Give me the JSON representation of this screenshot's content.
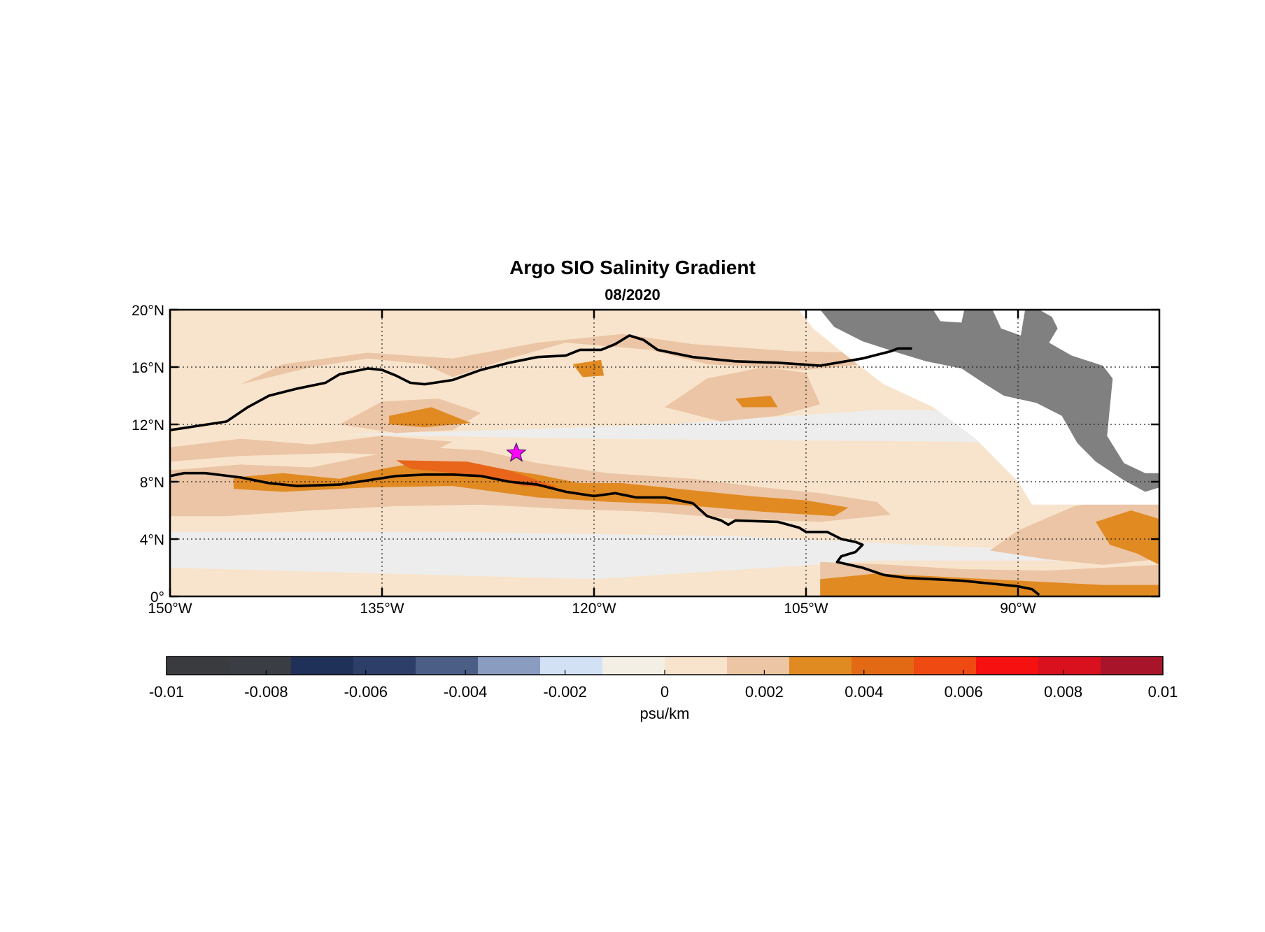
{
  "chart_data": {
    "type": "heatmap",
    "title": "Argo SIO Salinity Gradient",
    "subtitle": "08/2020",
    "x_ticks": [
      "150°W",
      "135°W",
      "120°W",
      "105°W",
      "90°W"
    ],
    "x_tick_values": [
      -150,
      -135,
      -120,
      -105,
      -90
    ],
    "xlim": [
      -150,
      -80
    ],
    "y_ticks": [
      "0°",
      "4°N",
      "8°N",
      "12°N",
      "16°N",
      "20°N"
    ],
    "y_tick_values": [
      0,
      4,
      8,
      12,
      16,
      20
    ],
    "ylim": [
      0,
      20
    ],
    "grid": true,
    "colorbar": {
      "label": "psu/km",
      "range": [
        -0.01,
        0.01
      ],
      "ticks": [
        "-0.01",
        "-0.008",
        "-0.006",
        "-0.004",
        "-0.002",
        "0",
        "0.002",
        "0.004",
        "0.006",
        "0.008",
        "0.01"
      ],
      "tick_values": [
        -0.01,
        -0.008,
        -0.006,
        -0.004,
        -0.002,
        0,
        0.002,
        0.004,
        0.006,
        0.008,
        0.01
      ],
      "colors": [
        "#3a3b3e",
        "#3b3d44",
        "#1f3158",
        "#2d3e68",
        "#4b5e86",
        "#8a9cc0",
        "#d2e2f4",
        "#f4efe4",
        "#f8e4cc",
        "#ecc6a4",
        "#e08a22",
        "#e36a14",
        "#ef4a12",
        "#f71010",
        "#d9101e",
        "#a8152b"
      ]
    },
    "levels": {
      "level1_color": "#f8e4cc",
      "level2_color": "#ebc5a5",
      "level3_color": "#e18a22",
      "level4_color": "#e8651a",
      "background_color": "#ededed",
      "land_color": "#808080"
    },
    "marker": {
      "lon": -125.5,
      "lat": 10,
      "symbol": "star",
      "color": "#ff00ff"
    },
    "front_lines": [
      {
        "name": "north-front",
        "points": [
          [
            -150,
            11.6
          ],
          [
            -148,
            11.9
          ],
          [
            -146,
            12.2
          ],
          [
            -144.5,
            13.2
          ],
          [
            -143,
            14
          ],
          [
            -141,
            14.5
          ],
          [
            -139,
            14.9
          ],
          [
            -138,
            15.5
          ],
          [
            -136,
            15.9
          ],
          [
            -135,
            15.8
          ],
          [
            -134,
            15.4
          ],
          [
            -133,
            14.9
          ],
          [
            -132,
            14.8
          ],
          [
            -130,
            15.1
          ],
          [
            -128,
            15.8
          ],
          [
            -126,
            16.3
          ],
          [
            -124,
            16.7
          ],
          [
            -122,
            16.8
          ],
          [
            -121,
            17.2
          ],
          [
            -119.5,
            17.2
          ],
          [
            -118.5,
            17.6
          ],
          [
            -117.5,
            18.2
          ],
          [
            -116.5,
            17.9
          ],
          [
            -115.5,
            17.2
          ],
          [
            -113,
            16.7
          ],
          [
            -110,
            16.4
          ],
          [
            -107,
            16.3
          ],
          [
            -104,
            16.1
          ],
          [
            -101,
            16.6
          ],
          [
            -99,
            17.1
          ],
          [
            -98.5,
            17.3
          ],
          [
            -97.5,
            17.3
          ]
        ]
      },
      {
        "name": "south-front",
        "points": [
          [
            -150,
            8.4
          ],
          [
            -149,
            8.6
          ],
          [
            -147.5,
            8.6
          ],
          [
            -145,
            8.3
          ],
          [
            -143,
            7.9
          ],
          [
            -141,
            7.7
          ],
          [
            -138,
            7.8
          ],
          [
            -136,
            8.1
          ],
          [
            -134,
            8.4
          ],
          [
            -132,
            8.5
          ],
          [
            -130,
            8.5
          ],
          [
            -128,
            8.4
          ],
          [
            -126,
            8.0
          ],
          [
            -124,
            7.8
          ],
          [
            -122,
            7.3
          ],
          [
            -120,
            7.0
          ],
          [
            -118.5,
            7.2
          ],
          [
            -117,
            6.9
          ],
          [
            -115,
            6.9
          ],
          [
            -113,
            6.5
          ],
          [
            -112,
            5.6
          ],
          [
            -111,
            5.3
          ],
          [
            -110.5,
            5.0
          ],
          [
            -110,
            5.3
          ],
          [
            -107,
            5.2
          ],
          [
            -105.5,
            4.8
          ],
          [
            -105,
            4.5
          ],
          [
            -103.5,
            4.5
          ],
          [
            -102.5,
            4.0
          ],
          [
            -101.5,
            3.8
          ],
          [
            -101,
            3.6
          ],
          [
            -101.5,
            3.1
          ],
          [
            -102.5,
            2.8
          ],
          [
            -102.8,
            2.4
          ],
          [
            -101,
            2.0
          ],
          [
            -99.5,
            1.5
          ],
          [
            -98,
            1.3
          ],
          [
            -96,
            1.2
          ],
          [
            -94,
            1.1
          ],
          [
            -92,
            0.9
          ],
          [
            -90,
            0.7
          ],
          [
            -89,
            0.5
          ],
          [
            -88.5,
            0.1
          ]
        ]
      }
    ]
  }
}
